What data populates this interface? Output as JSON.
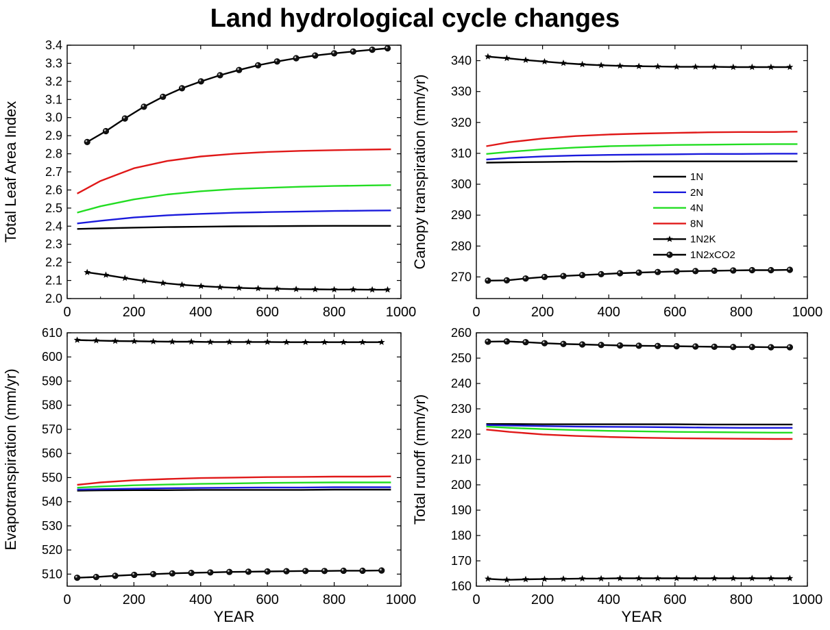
{
  "title": "Land hydrological cycle changes",
  "colors": {
    "1N": "#000000",
    "2N": "#1a1adc",
    "4N": "#22dd22",
    "8N": "#e01818",
    "1N2K": "#000000",
    "1N2xCO2": "#000000"
  },
  "chart_data": [
    {
      "type": "line",
      "ylabel": "Total Leaf Area Index",
      "xlabel": "",
      "xlim": [
        0,
        1000
      ],
      "ylim": [
        2.0,
        3.4
      ],
      "xticks": [
        0,
        200,
        400,
        600,
        800,
        1000
      ],
      "yticks": [
        2.0,
        2.1,
        2.2,
        2.3,
        2.4,
        2.5,
        2.6,
        2.7,
        2.8,
        2.9,
        3.0,
        3.1,
        3.2,
        3.3,
        3.4
      ],
      "ytick_labels": [
        "2.0",
        "2.1",
        "2.2",
        "2.3",
        "2.4",
        "2.5",
        "2.6",
        "2.7",
        "2.8",
        "2.9",
        "3.0",
        "3.1",
        "3.2",
        "3.3",
        "3.4"
      ],
      "legend": null,
      "series": [
        {
          "key": "1N",
          "marker": "none",
          "x": [
            30,
            100,
            200,
            300,
            400,
            500,
            600,
            700,
            800,
            900,
            970
          ],
          "values": [
            2.385,
            2.388,
            2.392,
            2.395,
            2.397,
            2.399,
            2.4,
            2.401,
            2.402,
            2.402,
            2.402
          ]
        },
        {
          "key": "2N",
          "marker": "none",
          "x": [
            30,
            100,
            200,
            300,
            400,
            500,
            600,
            700,
            800,
            900,
            970
          ],
          "values": [
            2.415,
            2.43,
            2.448,
            2.46,
            2.468,
            2.474,
            2.478,
            2.481,
            2.484,
            2.486,
            2.487
          ]
        },
        {
          "key": "4N",
          "marker": "none",
          "x": [
            30,
            100,
            200,
            300,
            400,
            500,
            600,
            700,
            800,
            900,
            970
          ],
          "values": [
            2.475,
            2.51,
            2.548,
            2.575,
            2.593,
            2.605,
            2.612,
            2.618,
            2.622,
            2.625,
            2.627
          ]
        },
        {
          "key": "8N",
          "marker": "none",
          "x": [
            30,
            100,
            200,
            300,
            400,
            500,
            600,
            700,
            800,
            900,
            970
          ],
          "values": [
            2.58,
            2.65,
            2.72,
            2.76,
            2.785,
            2.8,
            2.81,
            2.816,
            2.82,
            2.823,
            2.825
          ]
        },
        {
          "key": "1N2K",
          "marker": "star",
          "x": [
            60,
            116,
            173,
            230,
            287,
            344,
            401,
            458,
            515,
            572,
            629,
            686,
            743,
            800,
            857,
            914,
            960
          ],
          "values": [
            2.145,
            2.13,
            2.113,
            2.098,
            2.086,
            2.076,
            2.069,
            2.063,
            2.059,
            2.056,
            2.054,
            2.052,
            2.051,
            2.05,
            2.05,
            2.049,
            2.049
          ]
        },
        {
          "key": "1N2xCO2",
          "marker": "ball",
          "x": [
            60,
            116,
            173,
            230,
            287,
            344,
            401,
            458,
            515,
            572,
            629,
            686,
            743,
            800,
            857,
            914,
            960
          ],
          "values": [
            2.865,
            2.925,
            2.995,
            3.06,
            3.115,
            3.162,
            3.2,
            3.234,
            3.263,
            3.289,
            3.31,
            3.328,
            3.343,
            3.355,
            3.365,
            3.375,
            3.383
          ]
        }
      ]
    },
    {
      "type": "line",
      "ylabel": "Canopy transpiration (mm/yr)",
      "xlabel": "",
      "xlim": [
        0,
        1000
      ],
      "ylim": [
        263,
        345
      ],
      "xticks": [
        0,
        200,
        400,
        600,
        800,
        1000
      ],
      "yticks": [
        270,
        280,
        290,
        300,
        310,
        320,
        330,
        340
      ],
      "ytick_labels": [
        "270",
        "280",
        "290",
        "300",
        "310",
        "320",
        "330",
        "340"
      ],
      "legend": {
        "placement": "center-right",
        "entries": [
          {
            "key": "1N",
            "label": "1N",
            "marker": "none"
          },
          {
            "key": "2N",
            "label": "2N",
            "marker": "none"
          },
          {
            "key": "4N",
            "label": "4N",
            "marker": "none"
          },
          {
            "key": "8N",
            "label": "8N",
            "marker": "none"
          },
          {
            "key": "1N2K",
            "label": "1N2K",
            "marker": "star"
          },
          {
            "key": "1N2xCO2",
            "label": "1N2xCO2",
            "marker": "ball"
          }
        ]
      },
      "series": [
        {
          "key": "1N",
          "marker": "none",
          "x": [
            30,
            100,
            200,
            300,
            400,
            500,
            600,
            700,
            800,
            900,
            970
          ],
          "values": [
            307.0,
            307.1,
            307.2,
            307.3,
            307.3,
            307.4,
            307.4,
            307.4,
            307.4,
            307.4,
            307.4
          ]
        },
        {
          "key": "2N",
          "marker": "none",
          "x": [
            30,
            100,
            200,
            300,
            400,
            500,
            600,
            700,
            800,
            900,
            970
          ],
          "values": [
            308.0,
            308.5,
            309.0,
            309.3,
            309.5,
            309.6,
            309.7,
            309.8,
            309.8,
            309.9,
            309.9
          ]
        },
        {
          "key": "4N",
          "marker": "none",
          "x": [
            30,
            100,
            200,
            300,
            400,
            500,
            600,
            700,
            800,
            900,
            970
          ],
          "values": [
            309.8,
            310.5,
            311.3,
            311.9,
            312.3,
            312.5,
            312.7,
            312.8,
            312.9,
            313.0,
            313.0
          ]
        },
        {
          "key": "8N",
          "marker": "none",
          "x": [
            30,
            100,
            200,
            300,
            400,
            500,
            600,
            700,
            800,
            900,
            970
          ],
          "values": [
            312.3,
            313.6,
            314.8,
            315.6,
            316.1,
            316.4,
            316.6,
            316.8,
            316.9,
            316.9,
            317.0
          ]
        },
        {
          "key": "1N2K",
          "marker": "star",
          "x": [
            35,
            92,
            149,
            206,
            263,
            320,
            377,
            434,
            491,
            548,
            605,
            662,
            719,
            776,
            833,
            890,
            947
          ],
          "values": [
            341.3,
            340.8,
            340.2,
            339.7,
            339.2,
            338.8,
            338.5,
            338.3,
            338.2,
            338.1,
            338.0,
            338.0,
            338.0,
            337.9,
            337.9,
            337.9,
            337.9
          ]
        },
        {
          "key": "1N2xCO2",
          "marker": "ball",
          "x": [
            35,
            92,
            149,
            206,
            263,
            320,
            377,
            434,
            491,
            548,
            605,
            662,
            719,
            776,
            833,
            890,
            947
          ],
          "values": [
            268.8,
            268.9,
            269.5,
            270.0,
            270.3,
            270.6,
            270.9,
            271.2,
            271.4,
            271.6,
            271.8,
            271.9,
            272.0,
            272.1,
            272.2,
            272.2,
            272.3
          ]
        }
      ]
    },
    {
      "type": "line",
      "ylabel": "Evapotranspiration (mm/yr)",
      "xlabel": "YEAR",
      "xlim": [
        0,
        1000
      ],
      "ylim": [
        505,
        610
      ],
      "xticks": [
        0,
        200,
        400,
        600,
        800,
        1000
      ],
      "yticks": [
        510,
        520,
        530,
        540,
        550,
        560,
        570,
        580,
        590,
        600,
        610
      ],
      "ytick_labels": [
        "510",
        "520",
        "530",
        "540",
        "550",
        "560",
        "570",
        "580",
        "590",
        "600",
        "610"
      ],
      "legend": null,
      "series": [
        {
          "key": "1N",
          "marker": "none",
          "x": [
            30,
            100,
            200,
            300,
            400,
            500,
            600,
            700,
            800,
            900,
            970
          ],
          "values": [
            544.6,
            544.7,
            544.8,
            544.8,
            544.9,
            544.9,
            544.9,
            544.9,
            545.0,
            545.0,
            545.0
          ]
        },
        {
          "key": "2N",
          "marker": "none",
          "x": [
            30,
            100,
            200,
            300,
            400,
            500,
            600,
            700,
            800,
            900,
            970
          ],
          "values": [
            545.0,
            545.2,
            545.4,
            545.6,
            545.7,
            545.8,
            545.9,
            545.9,
            546.0,
            546.0,
            546.0
          ]
        },
        {
          "key": "4N",
          "marker": "none",
          "x": [
            30,
            100,
            200,
            300,
            400,
            500,
            600,
            700,
            800,
            900,
            970
          ],
          "values": [
            545.8,
            546.3,
            546.8,
            547.1,
            547.4,
            547.6,
            547.8,
            547.9,
            548.0,
            548.0,
            548.0
          ]
        },
        {
          "key": "8N",
          "marker": "none",
          "x": [
            30,
            100,
            200,
            300,
            400,
            500,
            600,
            700,
            800,
            900,
            970
          ],
          "values": [
            547.0,
            548.0,
            548.9,
            549.4,
            549.8,
            550.0,
            550.2,
            550.3,
            550.4,
            550.4,
            550.5
          ]
        },
        {
          "key": "1N2K",
          "marker": "star",
          "x": [
            30,
            87,
            144,
            201,
            258,
            315,
            372,
            429,
            486,
            543,
            600,
            657,
            714,
            771,
            828,
            885,
            942
          ],
          "values": [
            607.0,
            606.8,
            606.6,
            606.5,
            606.4,
            606.3,
            606.3,
            606.2,
            606.2,
            606.2,
            606.2,
            606.1,
            606.1,
            606.1,
            606.1,
            606.1,
            606.1
          ]
        },
        {
          "key": "1N2xCO2",
          "marker": "ball",
          "x": [
            30,
            87,
            144,
            201,
            258,
            315,
            372,
            429,
            486,
            543,
            600,
            657,
            714,
            771,
            828,
            885,
            942
          ],
          "values": [
            508.5,
            508.8,
            509.3,
            509.7,
            510.0,
            510.3,
            510.5,
            510.7,
            510.9,
            511.0,
            511.1,
            511.2,
            511.3,
            511.3,
            511.4,
            511.4,
            511.5
          ]
        }
      ]
    },
    {
      "type": "line",
      "ylabel": "Total runoff (mm/yr)",
      "xlabel": "YEAR",
      "xlim": [
        0,
        1000
      ],
      "ylim": [
        160,
        260
      ],
      "xticks": [
        0,
        200,
        400,
        600,
        800,
        1000
      ],
      "yticks": [
        160,
        170,
        180,
        190,
        200,
        210,
        220,
        230,
        240,
        250,
        260
      ],
      "ytick_labels": [
        "160",
        "170",
        "180",
        "190",
        "200",
        "210",
        "220",
        "230",
        "240",
        "250",
        "260"
      ],
      "legend": null,
      "series": [
        {
          "key": "1N",
          "marker": "none",
          "x": [
            30,
            100,
            200,
            300,
            400,
            500,
            600,
            700,
            800,
            900,
            955
          ],
          "values": [
            224.0,
            224.0,
            223.9,
            223.9,
            223.9,
            223.9,
            223.9,
            223.8,
            223.8,
            223.8,
            223.8
          ]
        },
        {
          "key": "2N",
          "marker": "none",
          "x": [
            30,
            100,
            200,
            300,
            400,
            500,
            600,
            700,
            800,
            900,
            955
          ],
          "values": [
            223.6,
            223.4,
            223.2,
            223.0,
            222.9,
            222.8,
            222.7,
            222.6,
            222.5,
            222.5,
            222.5
          ]
        },
        {
          "key": "4N",
          "marker": "none",
          "x": [
            30,
            100,
            200,
            300,
            400,
            500,
            600,
            700,
            800,
            900,
            955
          ],
          "values": [
            223.0,
            222.5,
            222.0,
            221.6,
            221.3,
            221.1,
            220.9,
            220.8,
            220.7,
            220.6,
            220.6
          ]
        },
        {
          "key": "8N",
          "marker": "none",
          "x": [
            30,
            100,
            200,
            300,
            400,
            500,
            600,
            700,
            800,
            900,
            955
          ],
          "values": [
            221.8,
            220.9,
            219.9,
            219.3,
            218.9,
            218.6,
            218.4,
            218.3,
            218.2,
            218.1,
            218.1
          ]
        },
        {
          "key": "1N2K",
          "marker": "star",
          "x": [
            35,
            92,
            149,
            206,
            263,
            320,
            377,
            434,
            491,
            548,
            605,
            662,
            719,
            776,
            833,
            890,
            947
          ],
          "values": [
            162.9,
            162.5,
            162.7,
            162.8,
            162.9,
            163.0,
            163.0,
            163.1,
            163.1,
            163.1,
            163.1,
            163.1,
            163.1,
            163.1,
            163.1,
            163.1,
            163.1
          ]
        },
        {
          "key": "1N2xCO2",
          "marker": "ball",
          "x": [
            35,
            92,
            149,
            206,
            263,
            320,
            377,
            434,
            491,
            548,
            605,
            662,
            719,
            776,
            833,
            890,
            947
          ],
          "values": [
            256.5,
            256.6,
            256.3,
            255.9,
            255.6,
            255.4,
            255.2,
            255.0,
            254.9,
            254.8,
            254.7,
            254.6,
            254.5,
            254.4,
            254.4,
            254.3,
            254.3
          ]
        }
      ]
    }
  ]
}
